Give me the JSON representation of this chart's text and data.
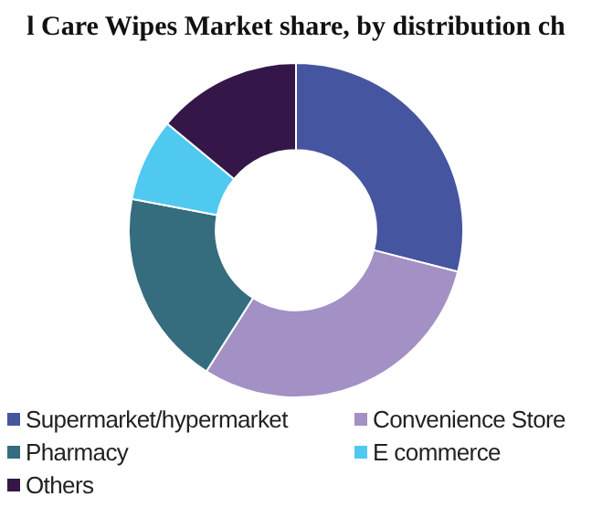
{
  "chart_data": {
    "type": "donut",
    "title": "l Care Wipes Market share, by distribution ch",
    "categories": [
      "Supermarket/hypermarket",
      "Convenience Store",
      "Pharmacy",
      "E commerce",
      "Others"
    ],
    "values": [
      29,
      30,
      19,
      8,
      14
    ],
    "colors": [
      "#4655a0",
      "#a390c4",
      "#356d7e",
      "#4fc9ef",
      "#341748"
    ],
    "legend": "bottom"
  }
}
